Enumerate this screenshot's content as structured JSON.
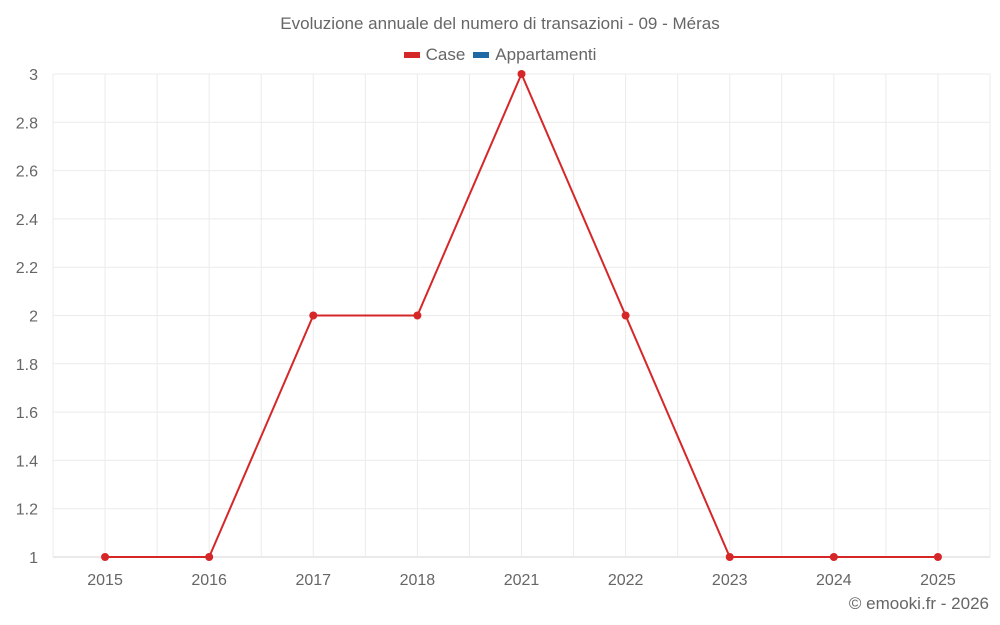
{
  "chart": {
    "title": "Evoluzione annuale del numero di transazioni - 09 - Méras",
    "credit": "© emooki.fr - 2026",
    "legend": [
      {
        "label": "Case",
        "color": "#d62728"
      },
      {
        "label": "Appartamenti",
        "color": "#1f6aa5"
      }
    ]
  },
  "chart_data": {
    "type": "line",
    "title": "Evoluzione annuale del numero di transazioni - 09 - Méras",
    "xlabel": "",
    "ylabel": "",
    "categories": [
      "2015",
      "2016",
      "2017",
      "2018",
      "2021",
      "2022",
      "2023",
      "2024",
      "2025"
    ],
    "series": [
      {
        "name": "Case",
        "color": "#d62728",
        "values": [
          1,
          1,
          2,
          2,
          3,
          2,
          1,
          1,
          1
        ]
      },
      {
        "name": "Appartamenti",
        "color": "#1f6aa5",
        "values": []
      }
    ],
    "ylim": [
      1,
      3
    ],
    "yticks": [
      "1",
      "1.2",
      "1.4",
      "1.6",
      "1.8",
      "2",
      "2.2",
      "2.4",
      "2.6",
      "2.8",
      "3"
    ],
    "grid": true,
    "legend_position": "top"
  }
}
